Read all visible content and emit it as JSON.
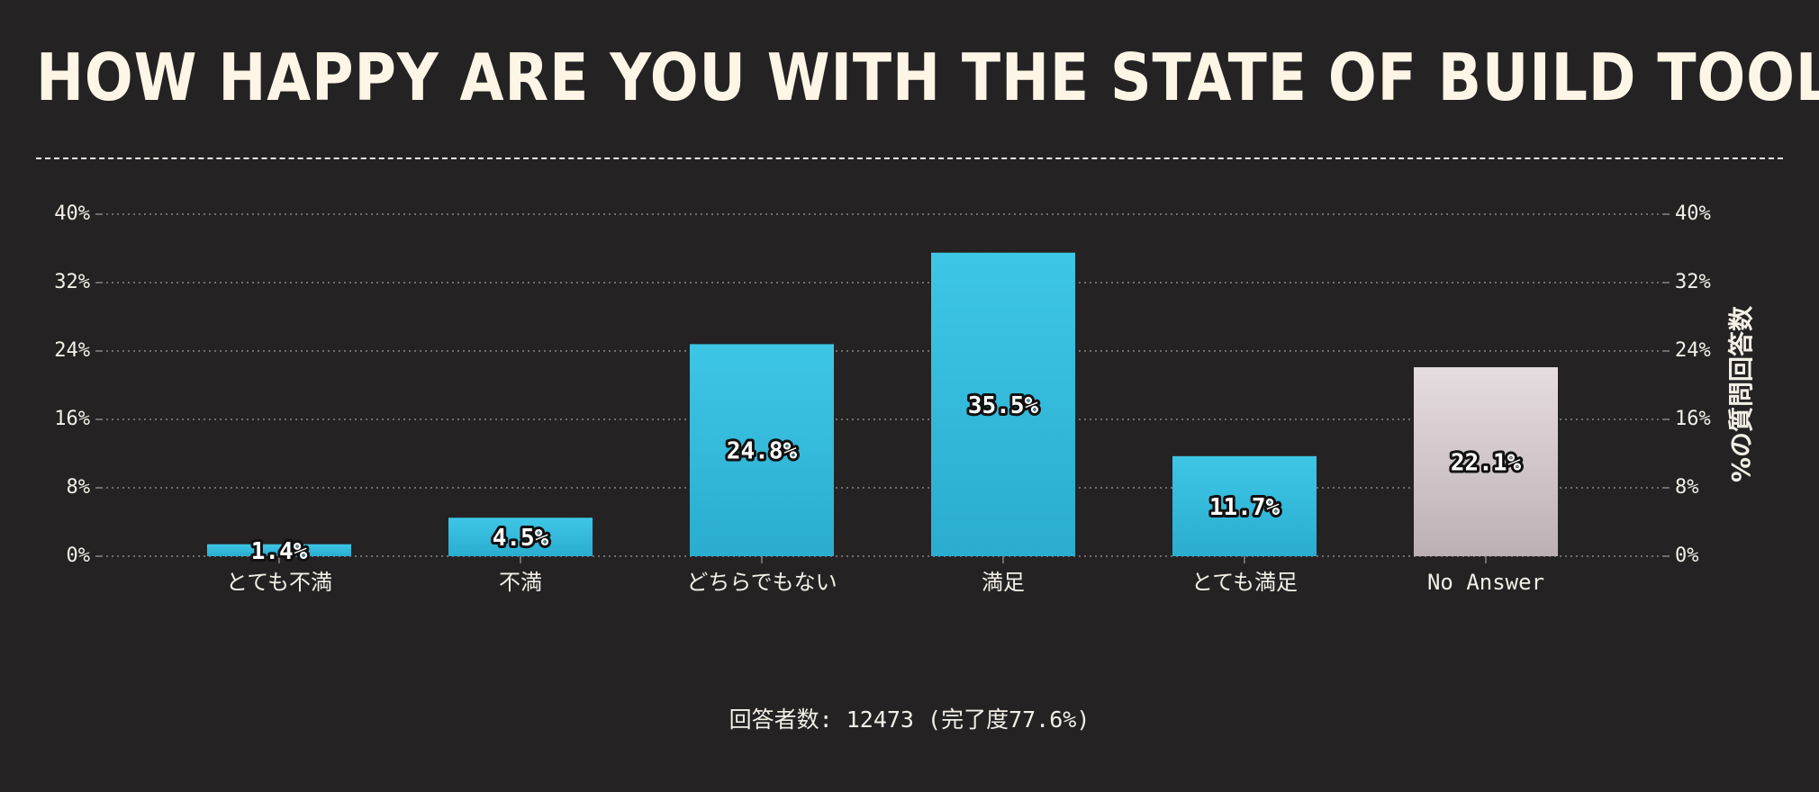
{
  "chart_data": {
    "type": "bar",
    "title": "HOW HAPPY ARE YOU WITH THE STATE OF BUILD TOOLS?",
    "categories": [
      "とても不満",
      "不満",
      "どちらでもない",
      "満足",
      "とても満足",
      "No Answer"
    ],
    "values": [
      1.4,
      4.5,
      24.8,
      35.5,
      11.7,
      22.1
    ],
    "data_labels": [
      "1.4%",
      "4.5%",
      "24.8%",
      "35.5%",
      "11.7%",
      "22.1%"
    ],
    "ylabel": "%の質問回答数",
    "ylim": [
      0,
      40
    ],
    "yticks": [
      0,
      8,
      16,
      24,
      32,
      40
    ],
    "ytick_labels": [
      "0%",
      "8%",
      "16%",
      "24%",
      "32%",
      "40%"
    ],
    "grid": true,
    "legend": "none",
    "colors": {
      "bar": "#3ec6e6",
      "bar_bottom": "#2aadcf",
      "no_answer": "#e6dde1",
      "no_answer_bottom": "#bcb0b4",
      "grid": "#8a8688",
      "background": "#252224"
    }
  },
  "footer": {
    "respondents": "回答者数: 12473 (完了度77.6%)"
  }
}
